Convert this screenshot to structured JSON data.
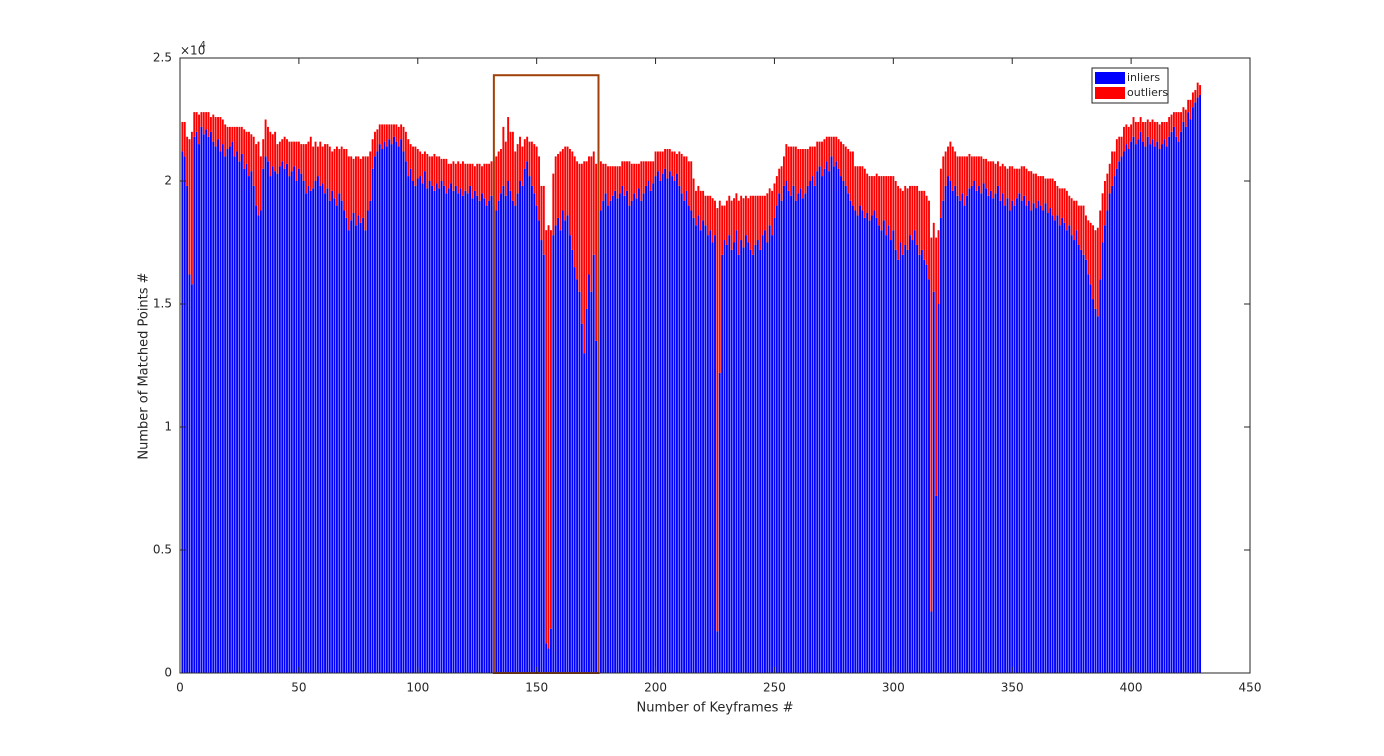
{
  "chart_data": {
    "type": "stacked_bar",
    "xlabel": "Number of Keyframes #",
    "ylabel": "Number of Matched Points #",
    "y_exponent_base": "×10",
    "y_exponent": "4",
    "xlim": [
      0,
      450
    ],
    "xticks": [
      0,
      50,
      100,
      150,
      200,
      250,
      300,
      350,
      400,
      450
    ],
    "ylim": [
      0,
      2.5
    ],
    "yticks": [
      0,
      0.5,
      1,
      1.5,
      2,
      2.5
    ],
    "legend": "top-right",
    "highlight_box": {
      "x": [
        132,
        176
      ],
      "y": [
        0,
        2.43
      ],
      "color": "#a0400a"
    },
    "x": [
      1,
      2,
      3,
      4,
      5,
      6,
      7,
      8,
      9,
      10,
      11,
      12,
      13,
      14,
      15,
      16,
      17,
      18,
      19,
      20,
      21,
      22,
      23,
      24,
      25,
      26,
      27,
      28,
      29,
      30,
      31,
      32,
      33,
      34,
      35,
      36,
      37,
      38,
      39,
      40,
      41,
      42,
      43,
      44,
      45,
      46,
      47,
      48,
      49,
      50,
      51,
      52,
      53,
      54,
      55,
      56,
      57,
      58,
      59,
      60,
      61,
      62,
      63,
      64,
      65,
      66,
      67,
      68,
      69,
      70,
      71,
      72,
      73,
      74,
      75,
      76,
      77,
      78,
      79,
      80,
      81,
      82,
      83,
      84,
      85,
      86,
      87,
      88,
      89,
      90,
      91,
      92,
      93,
      94,
      95,
      96,
      97,
      98,
      99,
      100,
      101,
      102,
      103,
      104,
      105,
      106,
      107,
      108,
      109,
      110,
      111,
      112,
      113,
      114,
      115,
      116,
      117,
      118,
      119,
      120,
      121,
      122,
      123,
      124,
      125,
      126,
      127,
      128,
      129,
      130,
      131,
      132,
      133,
      134,
      135,
      136,
      137,
      138,
      139,
      140,
      141,
      142,
      143,
      144,
      145,
      146,
      147,
      148,
      149,
      150,
      151,
      152,
      153,
      154,
      155,
      156,
      157,
      158,
      159,
      160,
      161,
      162,
      163,
      164,
      165,
      166,
      167,
      168,
      169,
      170,
      171,
      172,
      173,
      174,
      175,
      176,
      177,
      178,
      179,
      180,
      181,
      182,
      183,
      184,
      185,
      186,
      187,
      188,
      189,
      190,
      191,
      192,
      193,
      194,
      195,
      196,
      197,
      198,
      199,
      200,
      201,
      202,
      203,
      204,
      205,
      206,
      207,
      208,
      209,
      210,
      211,
      212,
      213,
      214,
      215,
      216,
      217,
      218,
      219,
      220,
      221,
      222,
      223,
      224,
      225,
      226,
      227,
      228,
      229,
      230,
      231,
      232,
      233,
      234,
      235,
      236,
      237,
      238,
      239,
      240,
      241,
      242,
      243,
      244,
      245,
      246,
      247,
      248,
      249,
      250,
      251,
      252,
      253,
      254,
      255,
      256,
      257,
      258,
      259,
      260,
      261,
      262,
      263,
      264,
      265,
      266,
      267,
      268,
      269,
      270,
      271,
      272,
      273,
      274,
      275,
      276,
      277,
      278,
      279,
      280,
      281,
      282,
      283,
      284,
      285,
      286,
      287,
      288,
      289,
      290,
      291,
      292,
      293,
      294,
      295,
      296,
      297,
      298,
      299,
      300,
      301,
      302,
      303,
      304,
      305,
      306,
      307,
      308,
      309,
      310,
      311,
      312,
      313,
      314,
      315,
      316,
      317,
      318,
      319,
      320,
      321,
      322,
      323,
      324,
      325,
      326,
      327,
      328,
      329,
      330,
      331,
      332,
      333,
      334,
      335,
      336,
      337,
      338,
      339,
      340,
      341,
      342,
      343,
      344,
      345,
      346,
      347,
      348,
      349,
      350,
      351,
      352,
      353,
      354,
      355,
      356,
      357,
      358,
      359,
      360,
      361,
      362,
      363,
      364,
      365,
      366,
      367,
      368,
      369,
      370,
      371,
      372,
      373,
      374,
      375,
      376,
      377,
      378,
      379,
      380,
      381,
      382,
      383,
      384,
      385,
      386,
      387,
      388,
      389,
      390,
      391,
      392,
      393,
      394,
      395,
      396,
      397,
      398,
      399,
      400,
      401,
      402,
      403,
      404,
      405,
      406,
      407,
      408,
      409,
      410,
      411,
      412,
      413,
      414,
      415,
      416,
      417,
      418,
      419,
      420,
      421,
      422,
      423,
      424,
      425,
      426,
      427,
      428,
      429
    ],
    "series": [
      {
        "name": "inliers",
        "color": "#0000ff",
        "values": [
          2.12,
          2.1,
          1.98,
          1.62,
          1.58,
          2.18,
          2.2,
          2.15,
          2.22,
          2.19,
          2.21,
          2.18,
          2.2,
          2.16,
          2.14,
          2.17,
          2.12,
          2.15,
          2.1,
          2.13,
          2.14,
          2.16,
          2.1,
          2.12,
          2.08,
          2.11,
          2.05,
          2.07,
          2.02,
          2.04,
          1.98,
          1.9,
          1.86,
          1.88,
          2.05,
          2.1,
          2.08,
          2.02,
          2.06,
          2.04,
          2.03,
          2.06,
          2.08,
          2.05,
          2.07,
          2.02,
          2.04,
          2.06,
          2.0,
          2.05,
          2.03,
          2.0,
          1.95,
          1.98,
          1.96,
          1.97,
          2.0,
          2.02,
          1.98,
          1.99,
          1.95,
          1.97,
          1.92,
          1.96,
          1.93,
          1.9,
          1.95,
          1.92,
          1.88,
          1.85,
          1.8,
          1.84,
          1.87,
          1.82,
          1.86,
          1.83,
          1.85,
          1.8,
          1.88,
          1.92,
          2.05,
          2.1,
          2.12,
          2.15,
          2.13,
          2.16,
          2.14,
          2.17,
          2.15,
          2.18,
          2.16,
          2.14,
          2.17,
          2.12,
          2.08,
          2.02,
          2.05,
          2.0,
          1.98,
          2.01,
          2.02,
          1.99,
          2.04,
          1.97,
          2.0,
          1.98,
          1.96,
          1.99,
          1.97,
          2.0,
          1.98,
          1.95,
          1.97,
          1.99,
          1.96,
          1.98,
          1.95,
          1.97,
          1.94,
          1.96,
          1.95,
          1.98,
          1.93,
          1.96,
          1.94,
          1.92,
          1.95,
          1.93,
          1.9,
          1.92,
          1.94,
          1.9,
          1.88,
          1.92,
          1.95,
          1.98,
          1.94,
          2.0,
          1.96,
          1.92,
          1.9,
          1.95,
          2.0,
          1.98,
          2.05,
          2.08,
          2.02,
          1.98,
          1.95,
          1.9,
          1.84,
          1.76,
          1.7,
          0.12,
          0.1,
          0.18,
          1.78,
          1.82,
          1.85,
          1.8,
          1.88,
          1.84,
          1.86,
          1.78,
          1.72,
          1.65,
          1.6,
          1.55,
          1.42,
          1.3,
          1.48,
          1.62,
          1.55,
          1.7,
          1.35,
          1.8,
          1.88,
          1.92,
          1.95,
          1.9,
          1.92,
          1.94,
          1.96,
          1.93,
          1.95,
          1.98,
          1.94,
          1.96,
          1.9,
          1.92,
          1.95,
          1.93,
          1.97,
          1.92,
          1.95,
          1.98,
          2.0,
          1.96,
          1.99,
          2.02,
          2.04,
          2.0,
          2.03,
          2.05,
          2.01,
          2.04,
          2.02,
          2.0,
          2.03,
          1.98,
          1.95,
          1.92,
          1.96,
          1.9,
          1.88,
          1.85,
          1.82,
          1.86,
          1.8,
          1.84,
          1.82,
          1.78,
          1.8,
          1.75,
          1.78,
          0.17,
          1.22,
          1.7,
          1.76,
          1.74,
          1.78,
          1.72,
          1.75,
          1.8,
          1.7,
          1.76,
          1.73,
          1.78,
          1.75,
          1.72,
          1.7,
          1.74,
          1.76,
          1.72,
          1.78,
          1.8,
          1.75,
          1.82,
          1.78,
          1.85,
          1.9,
          1.95,
          1.92,
          1.98,
          2.0,
          1.96,
          1.94,
          1.98,
          1.92,
          1.95,
          1.97,
          1.93,
          1.95,
          1.98,
          2.0,
          2.02,
          1.98,
          2.04,
          2.06,
          2.02,
          2.05,
          2.08,
          2.04,
          2.1,
          2.06,
          2.08,
          2.05,
          2.02,
          2.0,
          1.98,
          1.95,
          1.92,
          1.9,
          1.88,
          1.86,
          1.9,
          1.88,
          1.85,
          1.87,
          1.84,
          1.86,
          1.88,
          1.85,
          1.82,
          1.8,
          1.84,
          1.78,
          1.82,
          1.76,
          1.8,
          1.72,
          1.68,
          1.75,
          1.7,
          1.74,
          1.72,
          1.78,
          1.76,
          1.8,
          1.74,
          1.7,
          1.72,
          1.68,
          1.66,
          1.6,
          0.25,
          1.55,
          0.72,
          1.5,
          1.85,
          1.92,
          1.98,
          2.02,
          2.0,
          1.96,
          1.98,
          1.94,
          1.92,
          1.95,
          1.9,
          1.94,
          1.97,
          1.98,
          2.0,
          1.96,
          1.98,
          1.95,
          1.99,
          1.97,
          1.94,
          1.96,
          1.93,
          1.95,
          1.98,
          1.92,
          1.95,
          1.9,
          1.93,
          1.88,
          1.92,
          1.9,
          1.93,
          1.95,
          1.92,
          1.94,
          1.9,
          1.92,
          1.88,
          1.91,
          1.89,
          1.92,
          1.9,
          1.88,
          1.91,
          1.87,
          1.89,
          1.86,
          1.84,
          1.86,
          1.82,
          1.85,
          1.83,
          1.8,
          1.82,
          1.78,
          1.76,
          1.8,
          1.74,
          1.72,
          1.7,
          1.68,
          1.62,
          1.58,
          1.52,
          1.48,
          1.45,
          1.6,
          1.75,
          1.82,
          1.88,
          1.95,
          1.98,
          2.02,
          2.05,
          2.08,
          2.1,
          2.12,
          2.15,
          2.13,
          2.16,
          2.18,
          2.15,
          2.17,
          2.2,
          2.16,
          2.14,
          2.18,
          2.15,
          2.17,
          2.14,
          2.16,
          2.13,
          2.15,
          2.17,
          2.14,
          2.18,
          2.2,
          2.22,
          2.18,
          2.16,
          2.2,
          2.24,
          2.22,
          2.28,
          2.25,
          2.3,
          2.32,
          2.34,
          2.35
        ]
      },
      {
        "name": "outliers",
        "color": "#ff0000",
        "values": [
          0.12,
          0.14,
          0.2,
          0.55,
          0.62,
          0.1,
          0.08,
          0.12,
          0.06,
          0.09,
          0.07,
          0.1,
          0.06,
          0.11,
          0.12,
          0.09,
          0.14,
          0.1,
          0.13,
          0.09,
          0.08,
          0.06,
          0.12,
          0.1,
          0.14,
          0.11,
          0.16,
          0.13,
          0.18,
          0.15,
          0.2,
          0.25,
          0.3,
          0.22,
          0.12,
          0.15,
          0.14,
          0.18,
          0.13,
          0.16,
          0.12,
          0.1,
          0.09,
          0.13,
          0.1,
          0.14,
          0.12,
          0.1,
          0.16,
          0.11,
          0.12,
          0.15,
          0.2,
          0.18,
          0.22,
          0.17,
          0.16,
          0.12,
          0.18,
          0.15,
          0.2,
          0.18,
          0.22,
          0.16,
          0.2,
          0.24,
          0.18,
          0.22,
          0.25,
          0.28,
          0.3,
          0.26,
          0.22,
          0.28,
          0.24,
          0.26,
          0.25,
          0.3,
          0.22,
          0.2,
          0.12,
          0.1,
          0.09,
          0.08,
          0.1,
          0.07,
          0.09,
          0.06,
          0.08,
          0.05,
          0.07,
          0.08,
          0.06,
          0.1,
          0.12,
          0.15,
          0.1,
          0.14,
          0.16,
          0.12,
          0.1,
          0.12,
          0.08,
          0.14,
          0.1,
          0.12,
          0.15,
          0.11,
          0.13,
          0.09,
          0.11,
          0.14,
          0.1,
          0.08,
          0.12,
          0.09,
          0.13,
          0.1,
          0.14,
          0.11,
          0.12,
          0.09,
          0.14,
          0.1,
          0.13,
          0.15,
          0.11,
          0.14,
          0.17,
          0.15,
          0.14,
          0.18,
          0.22,
          0.2,
          0.18,
          0.24,
          0.22,
          0.26,
          0.24,
          0.28,
          0.22,
          0.2,
          0.18,
          0.16,
          0.12,
          0.1,
          0.14,
          0.18,
          0.2,
          0.24,
          0.26,
          0.22,
          0.28,
          1.68,
          1.72,
          1.62,
          0.25,
          0.28,
          0.26,
          0.32,
          0.25,
          0.3,
          0.28,
          0.35,
          0.4,
          0.45,
          0.48,
          0.52,
          0.65,
          0.78,
          0.6,
          0.48,
          0.55,
          0.42,
          0.72,
          0.28,
          0.2,
          0.15,
          0.12,
          0.16,
          0.14,
          0.12,
          0.1,
          0.13,
          0.11,
          0.1,
          0.14,
          0.12,
          0.18,
          0.15,
          0.12,
          0.14,
          0.1,
          0.16,
          0.13,
          0.1,
          0.08,
          0.12,
          0.09,
          0.1,
          0.08,
          0.12,
          0.09,
          0.08,
          0.12,
          0.09,
          0.1,
          0.12,
          0.08,
          0.14,
          0.16,
          0.18,
          0.14,
          0.18,
          0.2,
          0.16,
          0.14,
          0.12,
          0.16,
          0.12,
          0.12,
          0.16,
          0.14,
          0.18,
          0.14,
          1.72,
          0.7,
          0.2,
          0.14,
          0.18,
          0.16,
          0.2,
          0.18,
          0.15,
          0.22,
          0.18,
          0.2,
          0.16,
          0.18,
          0.22,
          0.24,
          0.2,
          0.18,
          0.22,
          0.16,
          0.14,
          0.2,
          0.15,
          0.18,
          0.14,
          0.12,
          0.1,
          0.14,
          0.12,
          0.15,
          0.18,
          0.2,
          0.16,
          0.22,
          0.18,
          0.16,
          0.2,
          0.18,
          0.15,
          0.14,
          0.12,
          0.16,
          0.12,
          0.1,
          0.14,
          0.12,
          0.1,
          0.14,
          0.08,
          0.12,
          0.1,
          0.12,
          0.14,
          0.15,
          0.16,
          0.18,
          0.2,
          0.22,
          0.18,
          0.2,
          0.16,
          0.18,
          0.2,
          0.16,
          0.18,
          0.16,
          0.14,
          0.18,
          0.2,
          0.22,
          0.18,
          0.24,
          0.2,
          0.26,
          0.22,
          0.28,
          0.3,
          0.22,
          0.26,
          0.24,
          0.25,
          0.2,
          0.22,
          0.18,
          0.24,
          0.26,
          0.24,
          0.28,
          0.28,
          0.32,
          1.52,
          0.28,
          1.05,
          0.3,
          0.2,
          0.18,
          0.14,
          0.12,
          0.16,
          0.18,
          0.14,
          0.16,
          0.18,
          0.15,
          0.2,
          0.16,
          0.14,
          0.12,
          0.1,
          0.14,
          0.12,
          0.15,
          0.1,
          0.12,
          0.14,
          0.12,
          0.15,
          0.12,
          0.1,
          0.14,
          0.12,
          0.16,
          0.12,
          0.18,
          0.14,
          0.15,
          0.12,
          0.1,
          0.14,
          0.12,
          0.15,
          0.12,
          0.16,
          0.12,
          0.14,
          0.1,
          0.12,
          0.14,
          0.1,
          0.14,
          0.12,
          0.15,
          0.16,
          0.12,
          0.15,
          0.12,
          0.14,
          0.16,
          0.12,
          0.15,
          0.16,
          0.12,
          0.16,
          0.18,
          0.2,
          0.18,
          0.22,
          0.25,
          0.3,
          0.32,
          0.36,
          0.28,
          0.2,
          0.18,
          0.15,
          0.12,
          0.14,
          0.1,
          0.12,
          0.1,
          0.08,
          0.1,
          0.08,
          0.09,
          0.07,
          0.08,
          0.09,
          0.07,
          0.06,
          0.08,
          0.1,
          0.07,
          0.09,
          0.08,
          0.1,
          0.08,
          0.1,
          0.09,
          0.07,
          0.1,
          0.08,
          0.07,
          0.06,
          0.1,
          0.12,
          0.08,
          0.06,
          0.07,
          0.05,
          0.08,
          0.06,
          0.05,
          0.06,
          0.04
        ]
      }
    ]
  }
}
